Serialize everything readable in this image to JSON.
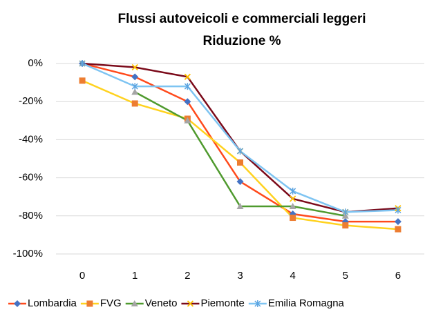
{
  "chart_data": {
    "type": "line",
    "title": "Flussi autoveicoli e commerciali leggeri",
    "subtitle": "Riduzione %",
    "categories": [
      "0",
      "1",
      "2",
      "3",
      "4",
      "5",
      "6"
    ],
    "series": [
      {
        "name": "Lombardia",
        "color": "#ff4a1c",
        "marker_color": "#4472c4",
        "marker": "diamond",
        "values": [
          0,
          -7,
          -20,
          -62,
          -79,
          -83,
          -83
        ]
      },
      {
        "name": "FVG",
        "color": "#ffd21f",
        "marker_color": "#ed7d31",
        "marker": "square",
        "values": [
          -9,
          -21,
          -29,
          -52,
          -81,
          -85,
          -87
        ]
      },
      {
        "name": "Veneto",
        "color": "#4f9a2e",
        "marker_color": "#a5a5a5",
        "marker": "triangle",
        "values": [
          null,
          -15,
          -30,
          -75,
          -75,
          -80,
          null
        ]
      },
      {
        "name": "Piemonte",
        "color": "#7b0a1a",
        "marker_color": "#ffc000",
        "marker": "x",
        "values": [
          0,
          -2,
          -7,
          -46,
          -71,
          -78,
          -76
        ]
      },
      {
        "name": "Emilia Romagna",
        "color": "#7ec4f2",
        "marker_color": "#5ba3e0",
        "marker": "star",
        "values": [
          0,
          -12,
          -12,
          -46,
          -67,
          -78,
          -77
        ]
      }
    ],
    "ylim": [
      -100,
      0
    ],
    "yticks": [
      {
        "value": -100,
        "label": "-100%"
      },
      {
        "value": -80,
        "label": "-80%"
      },
      {
        "value": -60,
        "label": "-60%"
      },
      {
        "value": -40,
        "label": "-40%"
      },
      {
        "value": -20,
        "label": "-20%"
      },
      {
        "value": 0,
        "label": "0%"
      }
    ],
    "grid": true,
    "legend": "bottom"
  }
}
